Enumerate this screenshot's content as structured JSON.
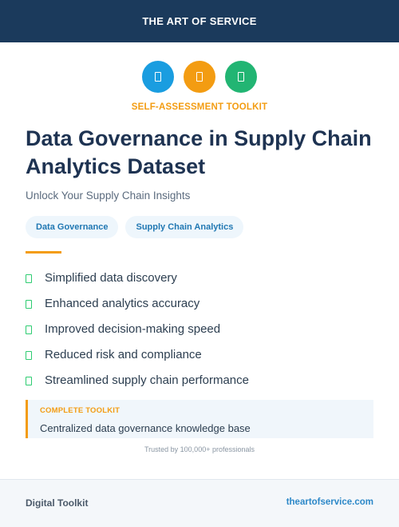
{
  "header": {
    "title": "THE ART OF SERVICE"
  },
  "icons": [
    {
      "name": "document-icon",
      "color": "#1a9de0"
    },
    {
      "name": "document-icon",
      "color": "#f39c12"
    },
    {
      "name": "document-icon",
      "color": "#22b573"
    }
  ],
  "hero": {
    "kicker": "SELF-ASSESSMENT TOOLKIT",
    "title": "Data Governance in Supply Chain Analytics Dataset",
    "subtitle": "Unlock Your Supply Chain Insights"
  },
  "tags": [
    "Data Governance",
    "Supply Chain Analytics"
  ],
  "benefits": [
    "Simplified data discovery",
    "Enhanced analytics accuracy",
    "Improved decision-making speed",
    "Reduced risk and compliance",
    "Streamlined supply chain performance"
  ],
  "toolkit": {
    "kicker": "COMPLETE TOOLKIT",
    "description": "Centralized data governance knowledge base"
  },
  "trusted": "Trusted by 100,000+ professionals",
  "footer": {
    "left": "Digital Toolkit",
    "right": "theartofservice.com"
  },
  "colors": {
    "navy": "#1b3a5c",
    "accent_orange": "#f39c12",
    "check_green": "#2ecc71",
    "link_blue": "#2c88c8"
  }
}
